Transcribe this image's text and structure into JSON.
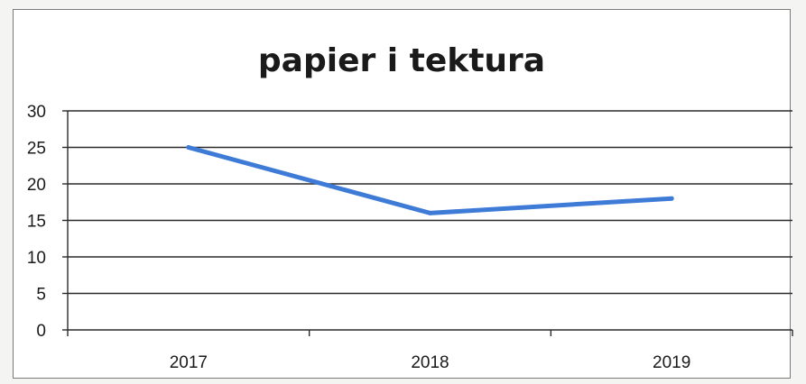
{
  "chart_data": {
    "type": "line",
    "title": "papier i tektura",
    "xlabel": "",
    "ylabel": "",
    "categories": [
      "2017",
      "2018",
      "2019"
    ],
    "series": [
      {
        "values": [
          25,
          16,
          18
        ],
        "color": "#3e7bd6"
      }
    ],
    "yticks": [
      0,
      5,
      10,
      15,
      20,
      25,
      30
    ],
    "ylim": [
      0,
      30
    ],
    "grid": "horizontal",
    "legend": "none"
  }
}
